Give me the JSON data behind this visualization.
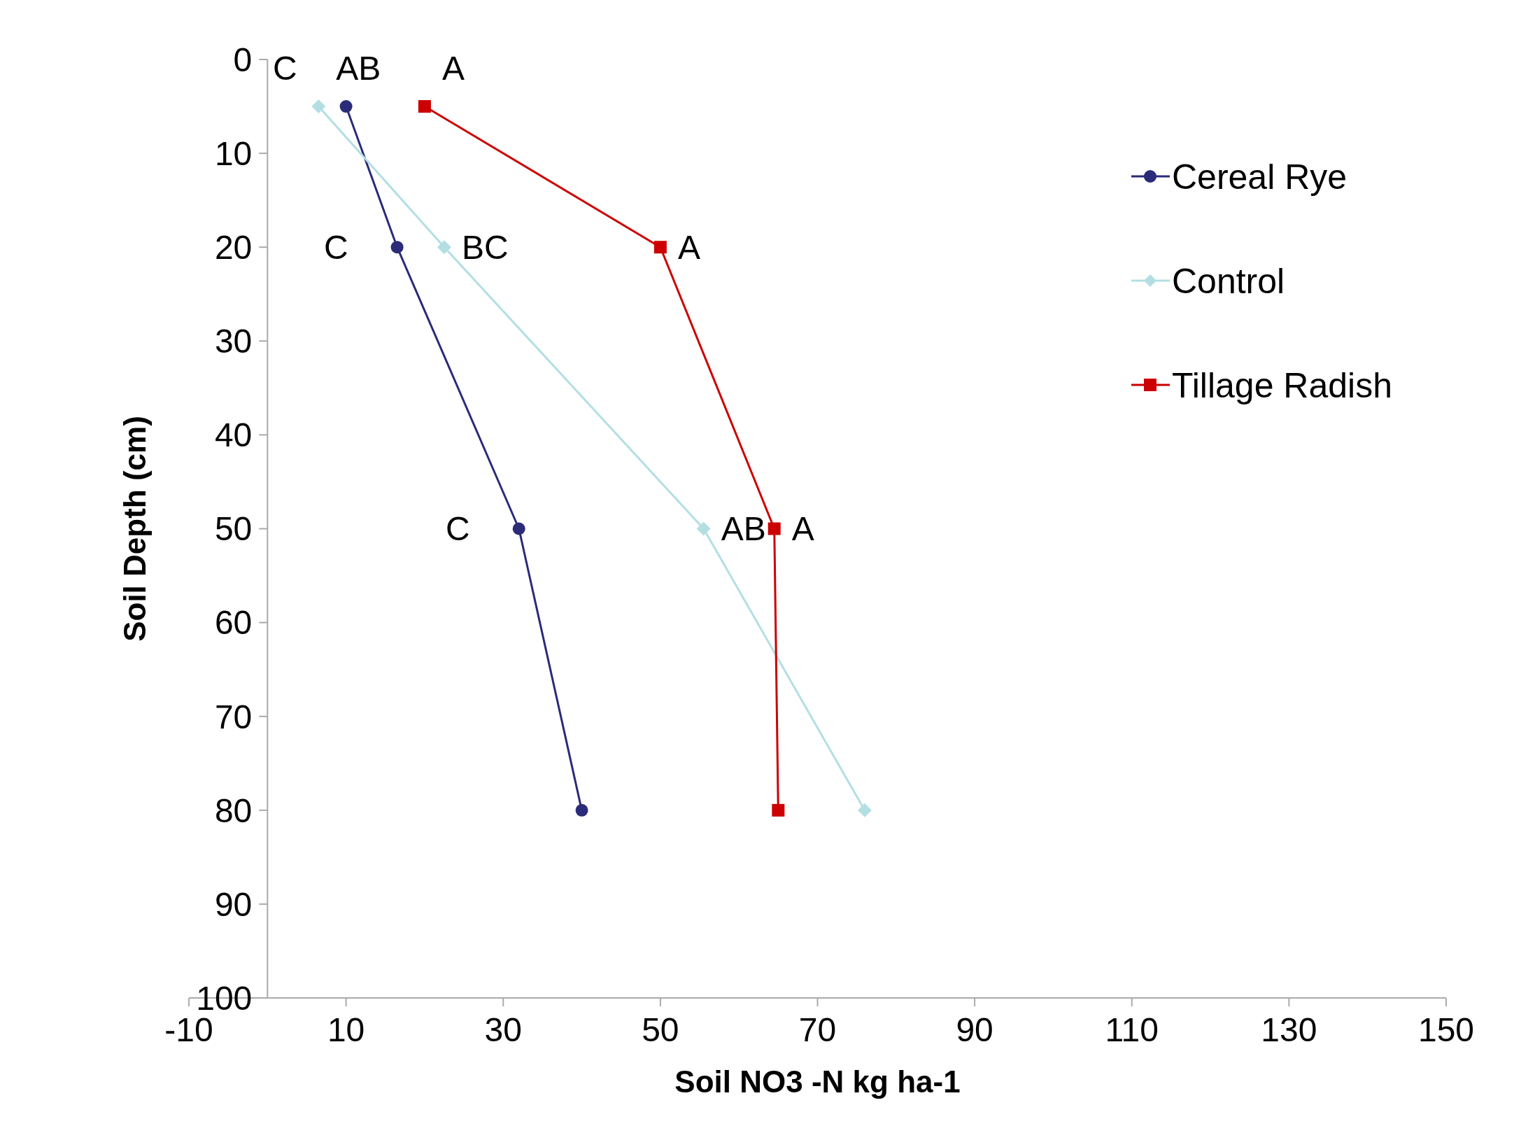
{
  "chart_data": {
    "type": "line",
    "xlabel": "Soil NO3 -N  kg ha-1",
    "ylabel": "Soil Depth (cm)",
    "xlim": [
      -10,
      150
    ],
    "xticks": [
      -10,
      10,
      30,
      50,
      70,
      90,
      110,
      130,
      150
    ],
    "ylim": [
      100,
      0
    ],
    "yticks": [
      0,
      10,
      20,
      30,
      40,
      50,
      60,
      70,
      80,
      90,
      100
    ],
    "grid": false,
    "legend": "right",
    "line_style": "solid",
    "series": [
      {
        "name": "Cereal Rye",
        "color": "#2b2b7a",
        "marker": "circle",
        "x": [
          10,
          16.5,
          32,
          40
        ],
        "values": [
          5,
          20,
          50,
          80
        ]
      },
      {
        "name": "Control",
        "color": "#b3dfe3",
        "marker": "diamond",
        "x": [
          6.5,
          22.5,
          55.5,
          76
        ],
        "values": [
          5,
          20,
          50,
          80
        ]
      },
      {
        "name": "Tillage Radish",
        "color": "#cc0000",
        "marker": "square",
        "x": [
          20,
          50,
          64.5,
          65
        ],
        "values": [
          5,
          20,
          50,
          80
        ]
      }
    ],
    "annotations": [
      {
        "text": "C",
        "x": 10,
        "y": 5
      },
      {
        "text": "AB",
        "x": 6.5,
        "y": 5
      },
      {
        "text": "A",
        "x": 20,
        "y": 5
      },
      {
        "text": "C",
        "x": 16.5,
        "y": 20
      },
      {
        "text": "BC",
        "x": 22.5,
        "y": 20
      },
      {
        "text": "A",
        "x": 50,
        "y": 20
      },
      {
        "text": "C",
        "x": 32,
        "y": 50
      },
      {
        "text": "AB",
        "x": 55.5,
        "y": 50
      },
      {
        "text": "A",
        "x": 64.5,
        "y": 50
      }
    ]
  }
}
